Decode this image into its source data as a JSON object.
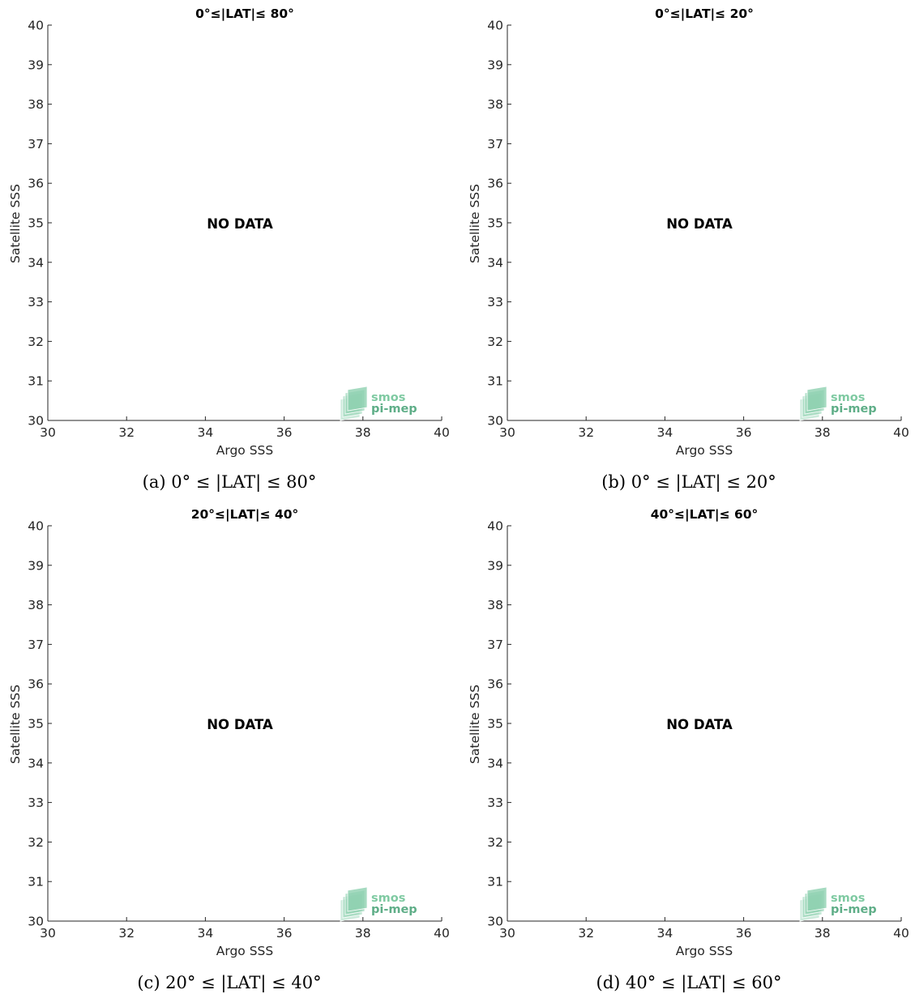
{
  "chart_data": [
    {
      "type": "scatter",
      "title": "0°≤|LAT|≤ 80°",
      "caption": "(a) 0° ≤ |LAT| ≤ 80°",
      "xlabel": "Argo SSS",
      "ylabel": "Satellite SSS",
      "xlim": [
        30,
        40
      ],
      "ylim": [
        30,
        40
      ],
      "xticks": [
        30,
        32,
        34,
        36,
        38,
        40
      ],
      "yticks": [
        30,
        31,
        32,
        33,
        34,
        35,
        36,
        37,
        38,
        39,
        40
      ],
      "x": [],
      "y": [],
      "annotation": "NO DATA",
      "watermark": [
        "smos",
        "pi-mep"
      ]
    },
    {
      "type": "scatter",
      "title": "0°≤|LAT|≤ 20°",
      "caption": "(b) 0° ≤ |LAT| ≤ 20°",
      "xlabel": "Argo SSS",
      "ylabel": "Satellite SSS",
      "xlim": [
        30,
        40
      ],
      "ylim": [
        30,
        40
      ],
      "xticks": [
        30,
        32,
        34,
        36,
        38,
        40
      ],
      "yticks": [
        30,
        31,
        32,
        33,
        34,
        35,
        36,
        37,
        38,
        39,
        40
      ],
      "x": [],
      "y": [],
      "annotation": "NO DATA",
      "watermark": [
        "smos",
        "pi-mep"
      ]
    },
    {
      "type": "scatter",
      "title": "20°≤|LAT|≤ 40°",
      "caption": "(c) 20° ≤ |LAT| ≤ 40°",
      "xlabel": "Argo SSS",
      "ylabel": "Satellite SSS",
      "xlim": [
        30,
        40
      ],
      "ylim": [
        30,
        40
      ],
      "xticks": [
        30,
        32,
        34,
        36,
        38,
        40
      ],
      "yticks": [
        30,
        31,
        32,
        33,
        34,
        35,
        36,
        37,
        38,
        39,
        40
      ],
      "x": [],
      "y": [],
      "annotation": "NO DATA",
      "watermark": [
        "smos",
        "pi-mep"
      ]
    },
    {
      "type": "scatter",
      "title": "40°≤|LAT|≤ 60°",
      "caption": "(d) 40° ≤ |LAT| ≤ 60°",
      "xlabel": "Argo SSS",
      "ylabel": "Satellite SSS",
      "xlim": [
        30,
        40
      ],
      "ylim": [
        30,
        40
      ],
      "xticks": [
        30,
        32,
        34,
        36,
        38,
        40
      ],
      "yticks": [
        30,
        31,
        32,
        33,
        34,
        35,
        36,
        37,
        38,
        39,
        40
      ],
      "x": [],
      "y": [],
      "annotation": "NO DATA",
      "watermark": [
        "smos",
        "pi-mep"
      ]
    }
  ],
  "colors": {
    "axis": "#262626",
    "logo_light": "#8fd1b0",
    "logo_mid": "#6cbf96",
    "logo_text_top": "#7fcaa2",
    "logo_text_bottom": "#5fae88"
  }
}
